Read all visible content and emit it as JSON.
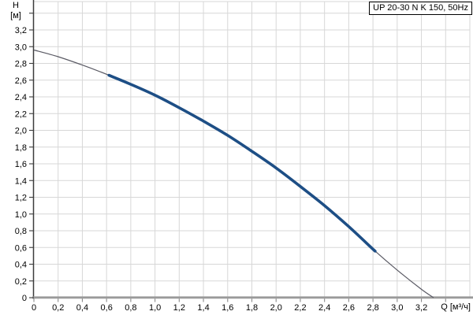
{
  "title_box": {
    "label": "UP 20-30 N K 150, 50Hz"
  },
  "axes": {
    "y_unit_line1": "H",
    "y_unit_line2": "[м]",
    "x_unit": "Q [м³/ч]"
  },
  "chart_data": {
    "type": "line",
    "title": "UP 20-30 N K 150, 50Hz",
    "xlabel": "Q [м³/ч]",
    "ylabel": "H [м]",
    "xlim": [
      0,
      3.6
    ],
    "ylim": [
      0,
      3.55
    ],
    "x_tick_step": 0.2,
    "x_tick_max": 3.4,
    "x_label_max": 3.2,
    "y_tick_step": 0.2,
    "y_tick_max": 3.4,
    "y_label_max": 3.2,
    "grid": true,
    "grid_color": "#d7d7d7",
    "x_axis_color": "#9a9a9a",
    "y_axis_color": "#3c3c3c",
    "legend": "none",
    "series": [
      {
        "name": "pump curve UP 20-30 N K 150 at 50Hz",
        "color": "#5a5a64",
        "width": 1.2,
        "points": [
          [
            0.0,
            2.96
          ],
          [
            0.2,
            2.88
          ],
          [
            0.4,
            2.78
          ],
          [
            0.6,
            2.67
          ],
          [
            0.8,
            2.55
          ],
          [
            1.0,
            2.42
          ],
          [
            1.2,
            2.27
          ],
          [
            1.4,
            2.11
          ],
          [
            1.6,
            1.94
          ],
          [
            1.8,
            1.75
          ],
          [
            2.0,
            1.55
          ],
          [
            2.2,
            1.33
          ],
          [
            2.4,
            1.1
          ],
          [
            2.6,
            0.85
          ],
          [
            2.8,
            0.58
          ],
          [
            3.0,
            0.33
          ],
          [
            3.2,
            0.1
          ],
          [
            3.3,
            0.0
          ]
        ]
      },
      {
        "name": "recommended operating range highlight",
        "color": "#1d4e85",
        "width": 3.6,
        "q_start": 0.62,
        "q_end": 2.81
      }
    ]
  }
}
